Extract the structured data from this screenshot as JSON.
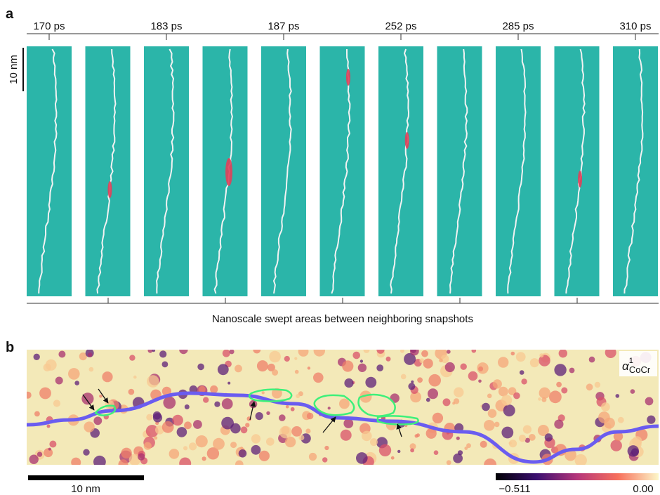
{
  "panel_a": {
    "label": "a",
    "time_labels": [
      "170 ps",
      "183 ps",
      "187 ps",
      "252 ps",
      "285 ps",
      "310 ps"
    ],
    "scale_bar": "10 nm",
    "caption": "Nanoscale swept areas between neighboring snapshots"
  },
  "panel_b": {
    "label": "b",
    "colormap_label": {
      "symbol": "α",
      "superscript": "1",
      "subscript": "CoCr"
    },
    "scale_bar": "10 nm",
    "colorbar": {
      "min_label": "−0.511",
      "max_label": "0.00"
    }
  }
}
